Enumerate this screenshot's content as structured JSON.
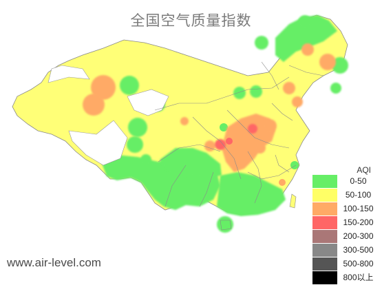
{
  "title": "全国空气质量指数",
  "watermark": "www.air-level.com",
  "legend": {
    "title": "AQI",
    "items": [
      {
        "label": "0-50",
        "color": "#66ee66"
      },
      {
        "label": "50-100",
        "color": "#ffff66"
      },
      {
        "label": "100-150",
        "color": "#ffaa66"
      },
      {
        "label": "150-200",
        "color": "#ff6666"
      },
      {
        "label": "200-300",
        "color": "#aa7777"
      },
      {
        "label": "300-500",
        "color": "#888888"
      },
      {
        "label": "500-800",
        "color": "#555555"
      },
      {
        "label": "800以上",
        "color": "#000000"
      }
    ]
  }
}
